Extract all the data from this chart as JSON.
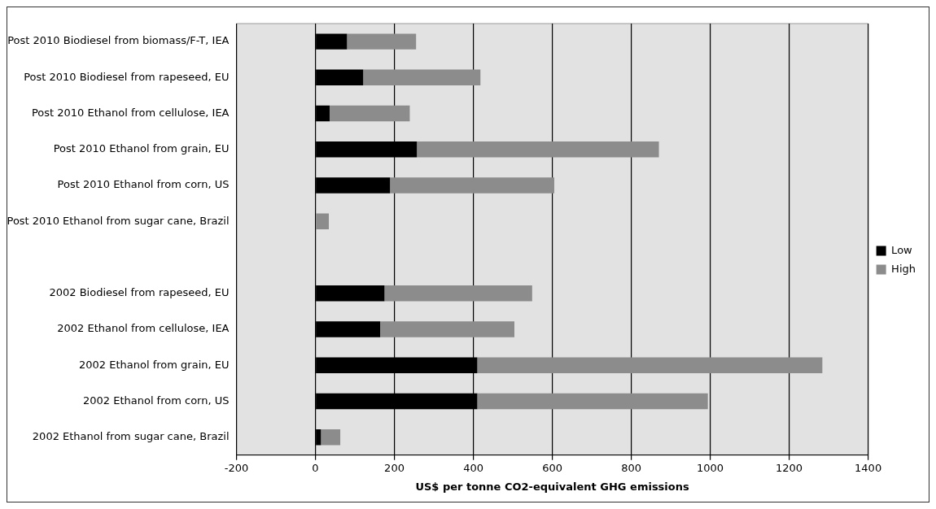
{
  "chart_data": {
    "type": "bar",
    "orientation": "horizontal",
    "stacked": true,
    "categories": [
      "Post 2010 Biodiesel from biomass/F-T, IEA",
      "Post 2010 Biodiesel from rapeseed, EU",
      "Post 2010 Ethanol from cellulose, IEA",
      "Post 2010 Ethanol from grain, EU",
      "Post 2010 Ethanol from corn, US",
      "Post 2010 Ethanol from sugar cane, Brazil",
      null,
      "2002 Biodiesel from rapeseed, EU",
      "2002 Ethanol from cellulose, IEA",
      "2002 Ethanol from grain, EU",
      "2002 Ethanol from corn, US",
      "2002 Ethanol from sugar cane, Brazil"
    ],
    "series": [
      {
        "name": "Low",
        "color": "#000000",
        "values": [
          80,
          121,
          36,
          257,
          189,
          0,
          null,
          175,
          164,
          410,
          410,
          14
        ]
      },
      {
        "name": "High",
        "color": "#8c8c8c",
        "values": [
          175,
          297,
          203,
          613,
          416,
          34,
          null,
          374,
          340,
          874,
          584,
          49
        ]
      }
    ],
    "xlabel": "US$ per tonne CO2-equivalent GHG emissions",
    "xlim": [
      -200,
      1400
    ],
    "xticks": [
      -200,
      0,
      200,
      400,
      600,
      800,
      1000,
      1200,
      1400
    ],
    "grid": "x",
    "legend": "right"
  }
}
